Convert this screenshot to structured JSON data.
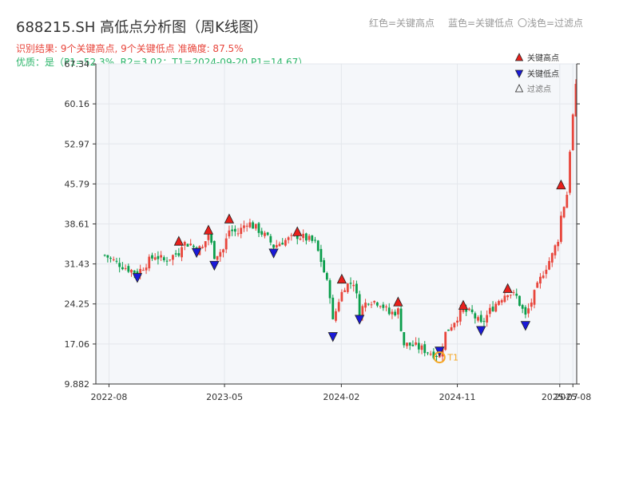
{
  "header": {
    "title": "688215.SH 高低点分析图（周K线图）",
    "legend_red": "红色=关键高点",
    "legend_blue": "蓝色=关键低点",
    "legend_light": "〇浅色=过滤点",
    "result_line": "识别结果: 9个关键高点, 9个关键低点   准确度: 87.5%",
    "quality_line": "优质：是（P1=52.3%, R2=3.02；T1=2024-09-20 P1=14.67）"
  },
  "colors": {
    "up": "#e8463c",
    "down": "#0b9e4c",
    "high_marker": "#e8201c",
    "low_marker": "#1a1ad8",
    "t1_ring": "#f5a623"
  },
  "chart_data": {
    "type": "candlestick",
    "ylim": [
      9.882,
      67.34
    ],
    "yticks": [
      "67.34",
      "60.16",
      "52.97",
      "45.79",
      "38.61",
      "31.43",
      "24.25",
      "17.06",
      "9.882"
    ],
    "xticks": [
      "2022-08",
      "2023-05",
      "2024-02",
      "2024-11",
      "2025-07",
      "2025-08"
    ],
    "legend": [
      {
        "label": "关键高点",
        "marker": "triangle-up",
        "color": "#e8201c"
      },
      {
        "label": "关键低点",
        "marker": "triangle-down",
        "color": "#1a1ad8"
      },
      {
        "label": "过滤点",
        "marker": "triangle-up-outline",
        "color": "#777777"
      }
    ],
    "key_highs": [
      {
        "date": "2023-01-13",
        "value": 35.5
      },
      {
        "date": "2023-03-24",
        "value": 37.5
      },
      {
        "date": "2023-05-12",
        "value": 39.5
      },
      {
        "date": "2023-10-20",
        "value": 37.2
      },
      {
        "date": "2024-02-02",
        "value": 28.7
      },
      {
        "date": "2024-06-14",
        "value": 24.6
      },
      {
        "date": "2024-11-15",
        "value": 24.0
      },
      {
        "date": "2025-02-28",
        "value": 27.0
      },
      {
        "date": "2025-07-04",
        "value": 45.6
      }
    ],
    "key_lows": [
      {
        "date": "2022-10-07",
        "value": 29.0
      },
      {
        "date": "2023-02-24",
        "value": 33.5
      },
      {
        "date": "2023-04-07",
        "value": 31.2
      },
      {
        "date": "2023-08-25",
        "value": 33.4
      },
      {
        "date": "2024-01-12",
        "value": 18.4
      },
      {
        "date": "2024-03-15",
        "value": 21.5
      },
      {
        "date": "2024-09-20",
        "value": 15.8
      },
      {
        "date": "2024-12-27",
        "value": 19.5
      },
      {
        "date": "2025-04-11",
        "value": 20.4
      }
    ],
    "t1": {
      "label": "T1",
      "date": "2024-09-20",
      "value": 14.67
    },
    "anchors": [
      [
        "2022-07-22",
        33.0
      ],
      [
        "2022-08-12",
        32.0
      ],
      [
        "2022-09-09",
        30.8
      ],
      [
        "2022-10-07",
        29.8
      ],
      [
        "2022-10-28",
        31.5
      ],
      [
        "2022-11-18",
        33.0
      ],
      [
        "2022-12-09",
        32.0
      ],
      [
        "2023-01-13",
        33.5
      ],
      [
        "2023-01-20",
        35.2
      ],
      [
        "2023-02-10",
        35.0
      ],
      [
        "2023-02-24",
        34.0
      ],
      [
        "2023-03-10",
        34.3
      ],
      [
        "2023-03-24",
        36.8
      ],
      [
        "2023-04-07",
        33.0
      ],
      [
        "2023-04-28",
        34.0
      ],
      [
        "2023-05-12",
        37.5
      ],
      [
        "2023-06-02",
        37.0
      ],
      [
        "2023-06-23",
        39.0
      ],
      [
        "2023-07-21",
        37.5
      ],
      [
        "2023-08-11",
        36.0
      ],
      [
        "2023-08-25",
        34.6
      ],
      [
        "2023-09-15",
        35.5
      ],
      [
        "2023-10-06",
        36.0
      ],
      [
        "2023-10-20",
        36.5
      ],
      [
        "2023-11-10",
        36.0
      ],
      [
        "2023-12-01",
        35.2
      ],
      [
        "2023-12-15",
        32.0
      ],
      [
        "2024-01-05",
        26.0
      ],
      [
        "2024-01-12",
        21.0
      ],
      [
        "2024-01-26",
        25.0
      ],
      [
        "2024-02-09",
        27.5
      ],
      [
        "2024-03-01",
        28.2
      ],
      [
        "2024-03-15",
        23.0
      ],
      [
        "2024-04-05",
        25.0
      ],
      [
        "2024-05-03",
        24.5
      ],
      [
        "2024-05-24",
        22.5
      ],
      [
        "2024-06-14",
        23.0
      ],
      [
        "2024-06-28",
        17.0
      ],
      [
        "2024-07-19",
        16.8
      ],
      [
        "2024-08-09",
        16.2
      ],
      [
        "2024-08-30",
        15.5
      ],
      [
        "2024-09-20",
        15.0
      ],
      [
        "2024-10-04",
        19.0
      ],
      [
        "2024-10-18",
        20.5
      ],
      [
        "2024-11-01",
        22.0
      ],
      [
        "2024-11-15",
        23.0
      ],
      [
        "2024-12-06",
        22.5
      ],
      [
        "2024-12-27",
        20.5
      ],
      [
        "2025-01-17",
        23.0
      ],
      [
        "2025-02-07",
        25.0
      ],
      [
        "2025-02-28",
        26.5
      ],
      [
        "2025-03-21",
        25.5
      ],
      [
        "2025-04-11",
        22.0
      ],
      [
        "2025-05-02",
        26.0
      ],
      [
        "2025-05-23",
        30.0
      ],
      [
        "2025-06-13",
        33.0
      ],
      [
        "2025-06-27",
        36.0
      ],
      [
        "2025-07-04",
        40.0
      ],
      [
        "2025-07-18",
        44.0
      ],
      [
        "2025-07-25",
        52.0
      ],
      [
        "2025-08-01",
        58.0
      ],
      [
        "2025-08-08",
        63.0
      ]
    ]
  }
}
